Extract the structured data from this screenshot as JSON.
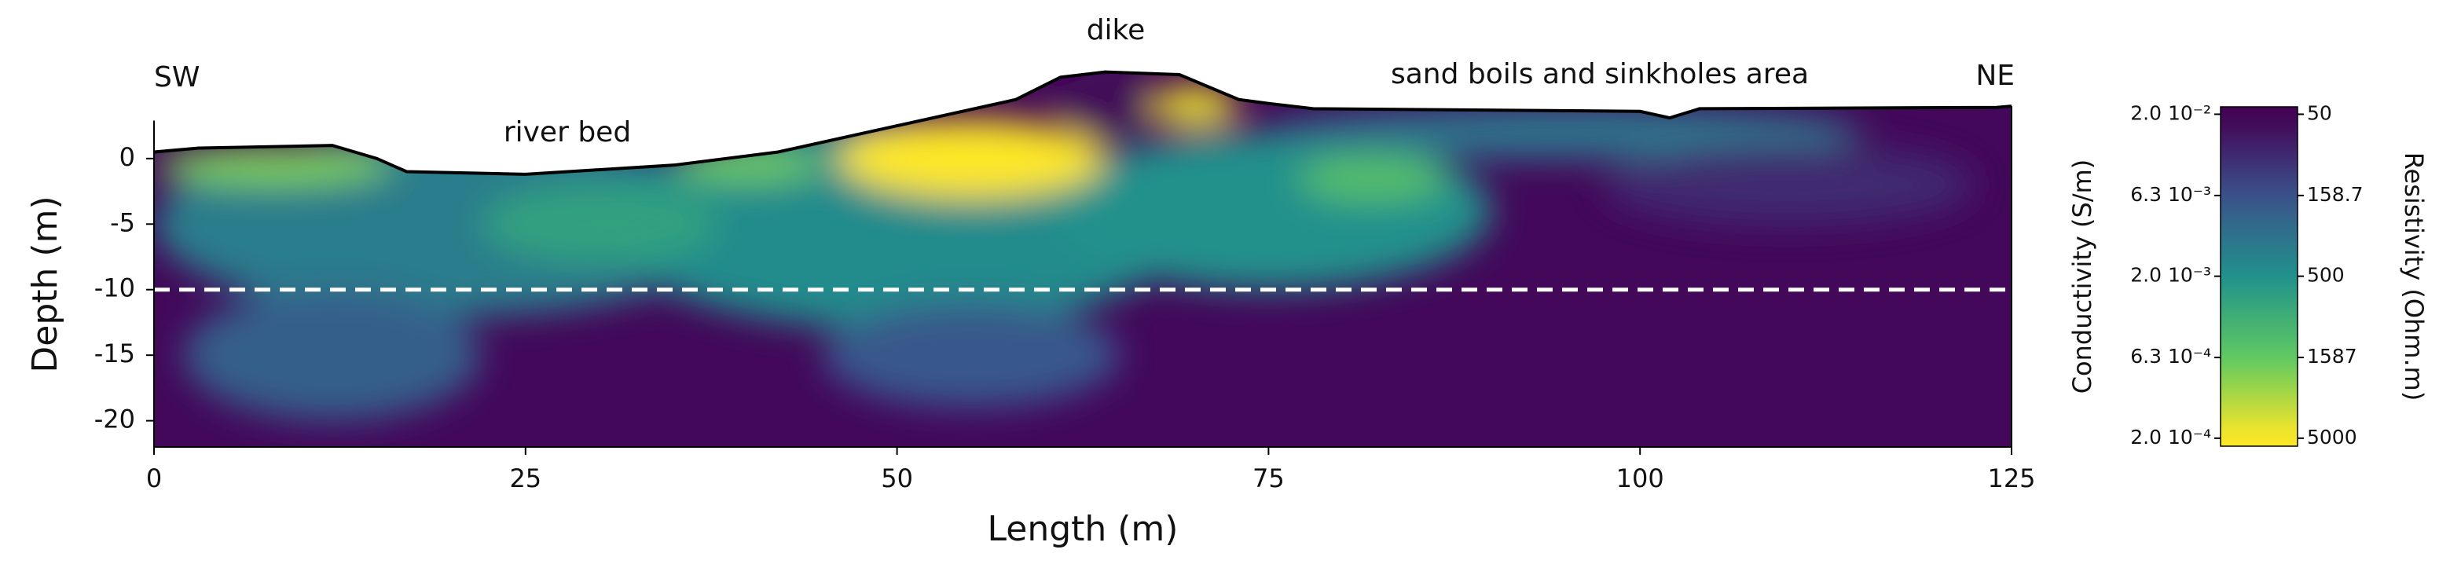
{
  "chart_data": {
    "type": "resistivity-section",
    "x_label": "Length (m)",
    "y_label": "Depth (m)",
    "annotations": [
      "SW",
      "river bed",
      "dike",
      "sand boils and sinkholes area",
      "NE"
    ],
    "xlim": [
      0,
      125
    ],
    "ylim": [
      -22,
      7
    ],
    "xticks": [
      0,
      25,
      50,
      75,
      100,
      125
    ],
    "yticks": [
      0,
      -5,
      -10,
      -15,
      -20
    ],
    "topography": {
      "x": [
        0,
        3,
        12,
        15,
        17,
        25,
        35,
        42,
        50,
        58,
        61,
        64,
        69,
        73,
        75,
        78,
        100,
        102,
        104,
        124,
        125
      ],
      "elevation": [
        0.5,
        0.8,
        1.0,
        0,
        -1,
        -1.2,
        -0.5,
        0.5,
        2.5,
        4.5,
        6.2,
        6.6,
        6.4,
        4.5,
        4.2,
        3.8,
        3.6,
        3.1,
        3.8,
        3.9,
        4.0
      ]
    },
    "reference_depth": -10,
    "background_resistivity": 55,
    "anomalies": [
      {
        "x": 20,
        "depth": -5,
        "width": 40,
        "height": 14,
        "resistivity": 350
      },
      {
        "x": 50,
        "depth": -5,
        "width": 40,
        "height": 16,
        "resistivity": 450
      },
      {
        "x": 75,
        "depth": -4,
        "width": 30,
        "height": 12,
        "resistivity": 500
      },
      {
        "x": 95,
        "depth": 2,
        "width": 40,
        "height": 4,
        "resistivity": 300
      },
      {
        "x": 12,
        "depth": -15,
        "width": 20,
        "height": 10,
        "resistivity": 200
      },
      {
        "x": 55,
        "depth": -15,
        "width": 20,
        "height": 8,
        "resistivity": 180
      },
      {
        "x": 30,
        "depth": -5,
        "width": 16,
        "height": 6,
        "resistivity": 700
      },
      {
        "x": 110,
        "depth": -2,
        "width": 25,
        "height": 6,
        "resistivity": 90
      },
      {
        "x": 8,
        "depth": -0.5,
        "width": 16,
        "height": 3,
        "resistivity": 2000
      },
      {
        "x": 40,
        "depth": -0.5,
        "width": 10,
        "height": 2.5,
        "resistivity": 1800
      },
      {
        "x": 55,
        "depth": 0,
        "width": 18,
        "height": 6,
        "resistivity": 5000
      },
      {
        "x": 70,
        "depth": 4,
        "width": 6,
        "height": 3,
        "resistivity": 4500
      },
      {
        "x": 64,
        "depth": 4,
        "width": 6,
        "height": 5,
        "resistivity": 55
      },
      {
        "x": 82,
        "depth": -1.5,
        "width": 10,
        "height": 3.5,
        "resistivity": 1300
      }
    ],
    "colorbar": {
      "colormap": "viridis",
      "log_scale": true,
      "cblim": [
        45,
        5600
      ],
      "conductivity_label": "Conductivity (S/m)",
      "resistivity_label": "Resistivity (Ohm.m)",
      "conductivity_ticks": [
        {
          "value": 0.02,
          "label": "2.0 10⁻²"
        },
        {
          "value": 0.0063,
          "label": "6.3 10⁻³"
        },
        {
          "value": 0.002,
          "label": "2.0 10⁻³"
        },
        {
          "value": 0.00063,
          "label": "6.3 10⁻⁴"
        },
        {
          "value": 0.0002,
          "label": "2.0 10⁻⁴"
        }
      ],
      "resistivity_ticks": [
        50,
        158.7,
        500,
        1587,
        5000
      ]
    }
  }
}
